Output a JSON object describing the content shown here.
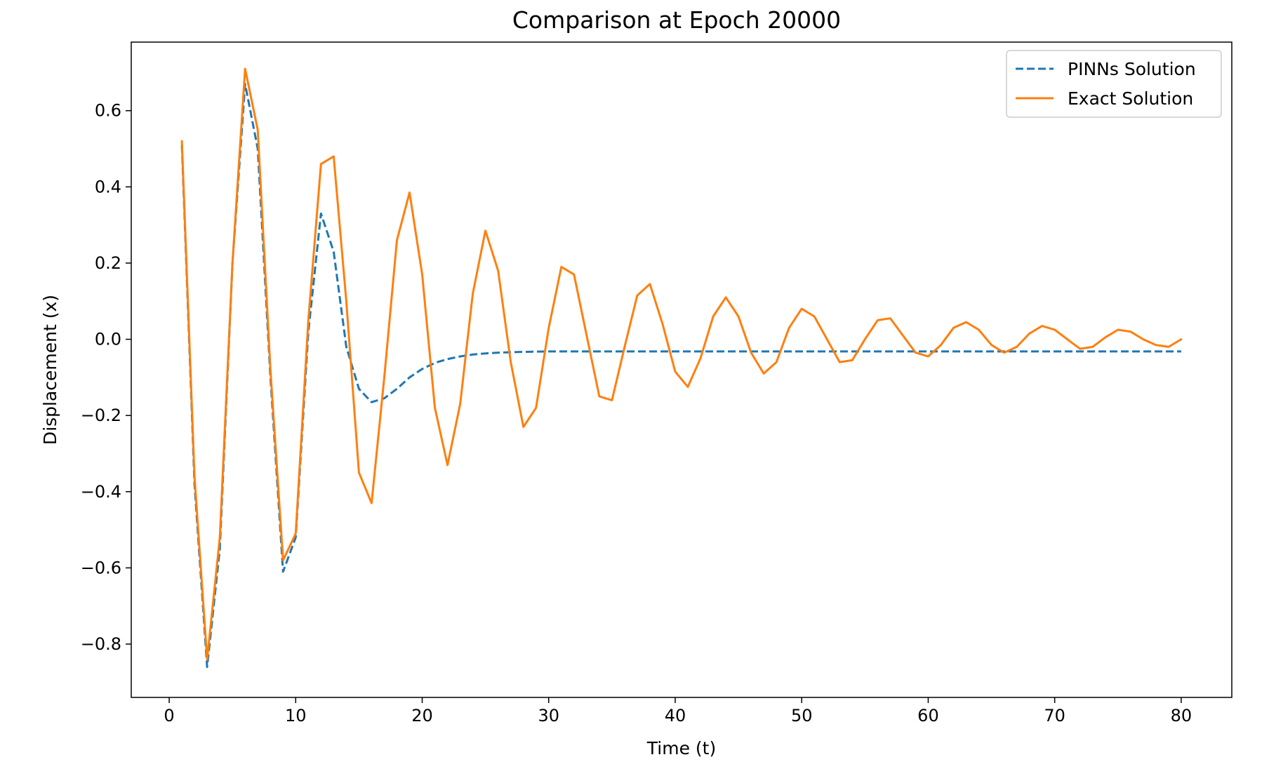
{
  "chart_data": {
    "type": "line",
    "title": "Comparison at Epoch 20000",
    "xlabel": "Time (t)",
    "ylabel": "Displacement (x)",
    "xlim": [
      -3,
      84
    ],
    "ylim": [
      -0.94,
      0.78
    ],
    "xticks": [
      0,
      10,
      20,
      30,
      40,
      50,
      60,
      70,
      80
    ],
    "xtick_labels": [
      "0",
      "10",
      "20",
      "30",
      "40",
      "50",
      "60",
      "70",
      "80"
    ],
    "yticks": [
      -0.8,
      -0.6,
      -0.4,
      -0.2,
      0.0,
      0.2,
      0.4,
      0.6
    ],
    "ytick_labels": [
      "−0.8",
      "−0.6",
      "−0.4",
      "−0.2",
      "0.0",
      "0.2",
      "0.4",
      "0.6"
    ],
    "grid": false,
    "legend_position": "top-right",
    "series": [
      {
        "name": "PINNs Solution",
        "style": "dashed",
        "color": "#1f77b4",
        "x": [
          1,
          2,
          3,
          4,
          5,
          6,
          7,
          8,
          9,
          10,
          11,
          12,
          13,
          14,
          15,
          16,
          17,
          18,
          19,
          20,
          21,
          22,
          23,
          24,
          25,
          26,
          27,
          28,
          30,
          35,
          40,
          50,
          60,
          70,
          80
        ],
        "y": [
          0.51,
          -0.38,
          -0.86,
          -0.55,
          0.2,
          0.67,
          0.5,
          -0.1,
          -0.61,
          -0.52,
          0.02,
          0.33,
          0.23,
          -0.02,
          -0.13,
          -0.165,
          -0.155,
          -0.13,
          -0.1,
          -0.078,
          -0.062,
          -0.052,
          -0.045,
          -0.04,
          -0.037,
          -0.035,
          -0.034,
          -0.033,
          -0.032,
          -0.032,
          -0.032,
          -0.032,
          -0.032,
          -0.032,
          -0.032
        ]
      },
      {
        "name": "Exact Solution",
        "style": "solid",
        "color": "#ff7f0e",
        "x": [
          1,
          2,
          3,
          4,
          5,
          6,
          7,
          8,
          9,
          10,
          11,
          12,
          13,
          14,
          15,
          16,
          17,
          18,
          19,
          20,
          21,
          22,
          23,
          24,
          25,
          26,
          27,
          28,
          29,
          30,
          31,
          32,
          33,
          34,
          35,
          36,
          37,
          38,
          39,
          40,
          41,
          42,
          43,
          44,
          45,
          46,
          47,
          48,
          49,
          50,
          51,
          52,
          53,
          54,
          55,
          56,
          57,
          58,
          59,
          60,
          61,
          62,
          63,
          64,
          65,
          66,
          67,
          68,
          69,
          70,
          71,
          72,
          73,
          74,
          75,
          76,
          77,
          78,
          79,
          80
        ],
        "y": [
          0.52,
          -0.36,
          -0.84,
          -0.52,
          0.2,
          0.71,
          0.55,
          -0.08,
          -0.58,
          -0.51,
          0.05,
          0.46,
          0.48,
          0.1,
          -0.35,
          -0.43,
          -0.1,
          0.26,
          0.385,
          0.17,
          -0.18,
          -0.33,
          -0.17,
          0.12,
          0.285,
          0.18,
          -0.06,
          -0.23,
          -0.18,
          0.03,
          0.19,
          0.17,
          0.01,
          -0.15,
          -0.16,
          -0.02,
          0.115,
          0.145,
          0.04,
          -0.085,
          -0.125,
          -0.05,
          0.06,
          0.11,
          0.06,
          -0.035,
          -0.09,
          -0.06,
          0.03,
          0.08,
          0.06,
          0.0,
          -0.06,
          -0.055,
          0.0,
          0.05,
          0.055,
          0.01,
          -0.035,
          -0.045,
          -0.015,
          0.03,
          0.045,
          0.025,
          -0.015,
          -0.035,
          -0.02,
          0.015,
          0.035,
          0.025,
          0.0,
          -0.025,
          -0.02,
          0.005,
          0.025,
          0.02,
          0.0,
          -0.015,
          -0.02,
          0.0
        ]
      }
    ]
  }
}
